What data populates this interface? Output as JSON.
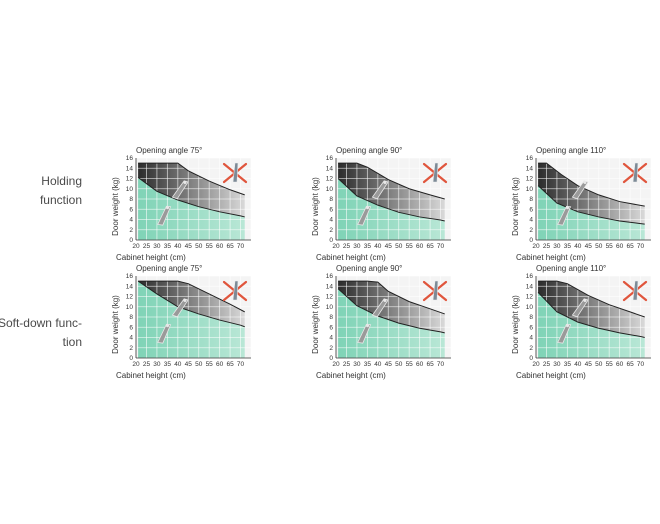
{
  "rows": [
    {
      "label": "Holding function"
    },
    {
      "label": "Soft-down function"
    }
  ],
  "row_label_lines": [
    [
      "Holding",
      "function"
    ],
    [
      "Soft-down func-",
      "tion"
    ]
  ],
  "colors": {
    "dark_band_start": "#2b2b2b",
    "dark_band_end": "#d9d9d9",
    "green_area_start": "#7fd3b6",
    "green_area_end": "#b9e7d6",
    "cross": "#e0553c",
    "grid": "#ffffff"
  },
  "icons": [
    "hinge-arm-icon",
    "cross-out-icon"
  ],
  "chart_data": [
    {
      "type": "area",
      "title": "Opening angle 75°",
      "xlabel": "Cabinet height (cm)",
      "ylabel": "Door weight (kg)",
      "xlim": [
        20,
        75
      ],
      "ylim": [
        0,
        16
      ],
      "x_ticks": [
        20,
        25,
        30,
        35,
        40,
        45,
        50,
        55,
        60,
        65,
        70
      ],
      "y_ticks": [
        0,
        2,
        4,
        6,
        8,
        10,
        12,
        14,
        16
      ],
      "series": [
        {
          "x": [
            21,
            28,
            40,
            45,
            55,
            65,
            72
          ],
          "values": [
            15,
            15,
            15,
            13.5,
            11.5,
            9.8,
            8.8
          ]
        },
        {
          "x": [
            21,
            30,
            40,
            50,
            60,
            70,
            72
          ],
          "values": [
            12.2,
            9.5,
            7.8,
            6.5,
            5.5,
            4.7,
            4.5
          ]
        }
      ]
    },
    {
      "type": "area",
      "title": "Opening angle 90°",
      "xlabel": "Cabinet height (cm)",
      "ylabel": "Door weight (kg)",
      "xlim": [
        20,
        75
      ],
      "ylim": [
        0,
        16
      ],
      "x_ticks": [
        20,
        25,
        30,
        35,
        40,
        45,
        50,
        55,
        60,
        65,
        70
      ],
      "y_ticks": [
        0,
        2,
        4,
        6,
        8,
        10,
        12,
        14,
        16
      ],
      "series": [
        {
          "x": [
            21,
            30,
            35,
            45,
            55,
            65,
            72
          ],
          "values": [
            15,
            15,
            14.2,
            11.8,
            10,
            8.8,
            8
          ]
        },
        {
          "x": [
            21,
            30,
            40,
            50,
            60,
            70,
            72
          ],
          "values": [
            12,
            8.6,
            6.8,
            5.4,
            4.5,
            3.9,
            3.7
          ]
        }
      ]
    },
    {
      "type": "area",
      "title": "Opening angle 110°",
      "xlabel": "Cabinet height (cm)",
      "ylabel": "Door weight (kg)",
      "xlim": [
        20,
        75
      ],
      "ylim": [
        0,
        16
      ],
      "x_ticks": [
        20,
        25,
        30,
        35,
        40,
        45,
        50,
        55,
        60,
        65,
        70
      ],
      "y_ticks": [
        0,
        2,
        4,
        6,
        8,
        10,
        12,
        14,
        16
      ],
      "series": [
        {
          "x": [
            21,
            25,
            32,
            40,
            50,
            60,
            72
          ],
          "values": [
            15,
            15,
            12.8,
            10.6,
            8.8,
            7.5,
            6.6
          ]
        },
        {
          "x": [
            21,
            30,
            40,
            50,
            60,
            70,
            72
          ],
          "values": [
            10.6,
            7.2,
            5.5,
            4.5,
            3.7,
            3.2,
            3.1
          ]
        }
      ]
    },
    {
      "type": "area",
      "title": "Opening angle 75°",
      "xlabel": "Cabinet height (cm)",
      "ylabel": "Door weight (kg)",
      "xlim": [
        20,
        75
      ],
      "ylim": [
        0,
        16
      ],
      "x_ticks": [
        20,
        25,
        30,
        35,
        40,
        45,
        50,
        55,
        60,
        65,
        70
      ],
      "y_ticks": [
        0,
        2,
        4,
        6,
        8,
        10,
        12,
        14,
        16
      ],
      "series": [
        {
          "x": [
            21,
            35,
            40,
            45,
            55,
            65,
            72
          ],
          "values": [
            15,
            15,
            15,
            14.5,
            12.5,
            10.5,
            9
          ]
        },
        {
          "x": [
            21,
            30,
            40,
            50,
            60,
            70,
            72
          ],
          "values": [
            15,
            12.5,
            10,
            8.6,
            7.4,
            6.4,
            6.1
          ]
        }
      ]
    },
    {
      "type": "area",
      "title": "Opening angle 90°",
      "xlabel": "Cabinet height (cm)",
      "ylabel": "Door weight (kg)",
      "xlim": [
        20,
        75
      ],
      "ylim": [
        0,
        16
      ],
      "x_ticks": [
        20,
        25,
        30,
        35,
        40,
        45,
        50,
        55,
        60,
        65,
        70
      ],
      "y_ticks": [
        0,
        2,
        4,
        6,
        8,
        10,
        12,
        14,
        16
      ],
      "series": [
        {
          "x": [
            21,
            35,
            40,
            45,
            55,
            65,
            72
          ],
          "values": [
            15,
            15,
            14.8,
            13,
            11,
            9.6,
            8.6
          ]
        },
        {
          "x": [
            21,
            30,
            40,
            50,
            60,
            70,
            72
          ],
          "values": [
            13.5,
            10.2,
            8.2,
            6.8,
            5.8,
            5.1,
            4.9
          ]
        }
      ]
    },
    {
      "type": "area",
      "title": "Opening angle 110°",
      "xlabel": "Cabinet height (cm)",
      "ylabel": "Door weight (kg)",
      "xlim": [
        20,
        75
      ],
      "ylim": [
        0,
        16
      ],
      "x_ticks": [
        20,
        25,
        30,
        35,
        40,
        45,
        50,
        55,
        60,
        65,
        70
      ],
      "y_ticks": [
        0,
        2,
        4,
        6,
        8,
        10,
        12,
        14,
        16
      ],
      "series": [
        {
          "x": [
            21,
            30,
            35,
            45,
            55,
            65,
            72
          ],
          "values": [
            15,
            15,
            14.5,
            12.2,
            10.4,
            9,
            8
          ]
        },
        {
          "x": [
            21,
            30,
            40,
            50,
            60,
            70,
            72
          ],
          "values": [
            12.8,
            9,
            7,
            5.8,
            4.9,
            4.2,
            4
          ]
        }
      ]
    }
  ]
}
